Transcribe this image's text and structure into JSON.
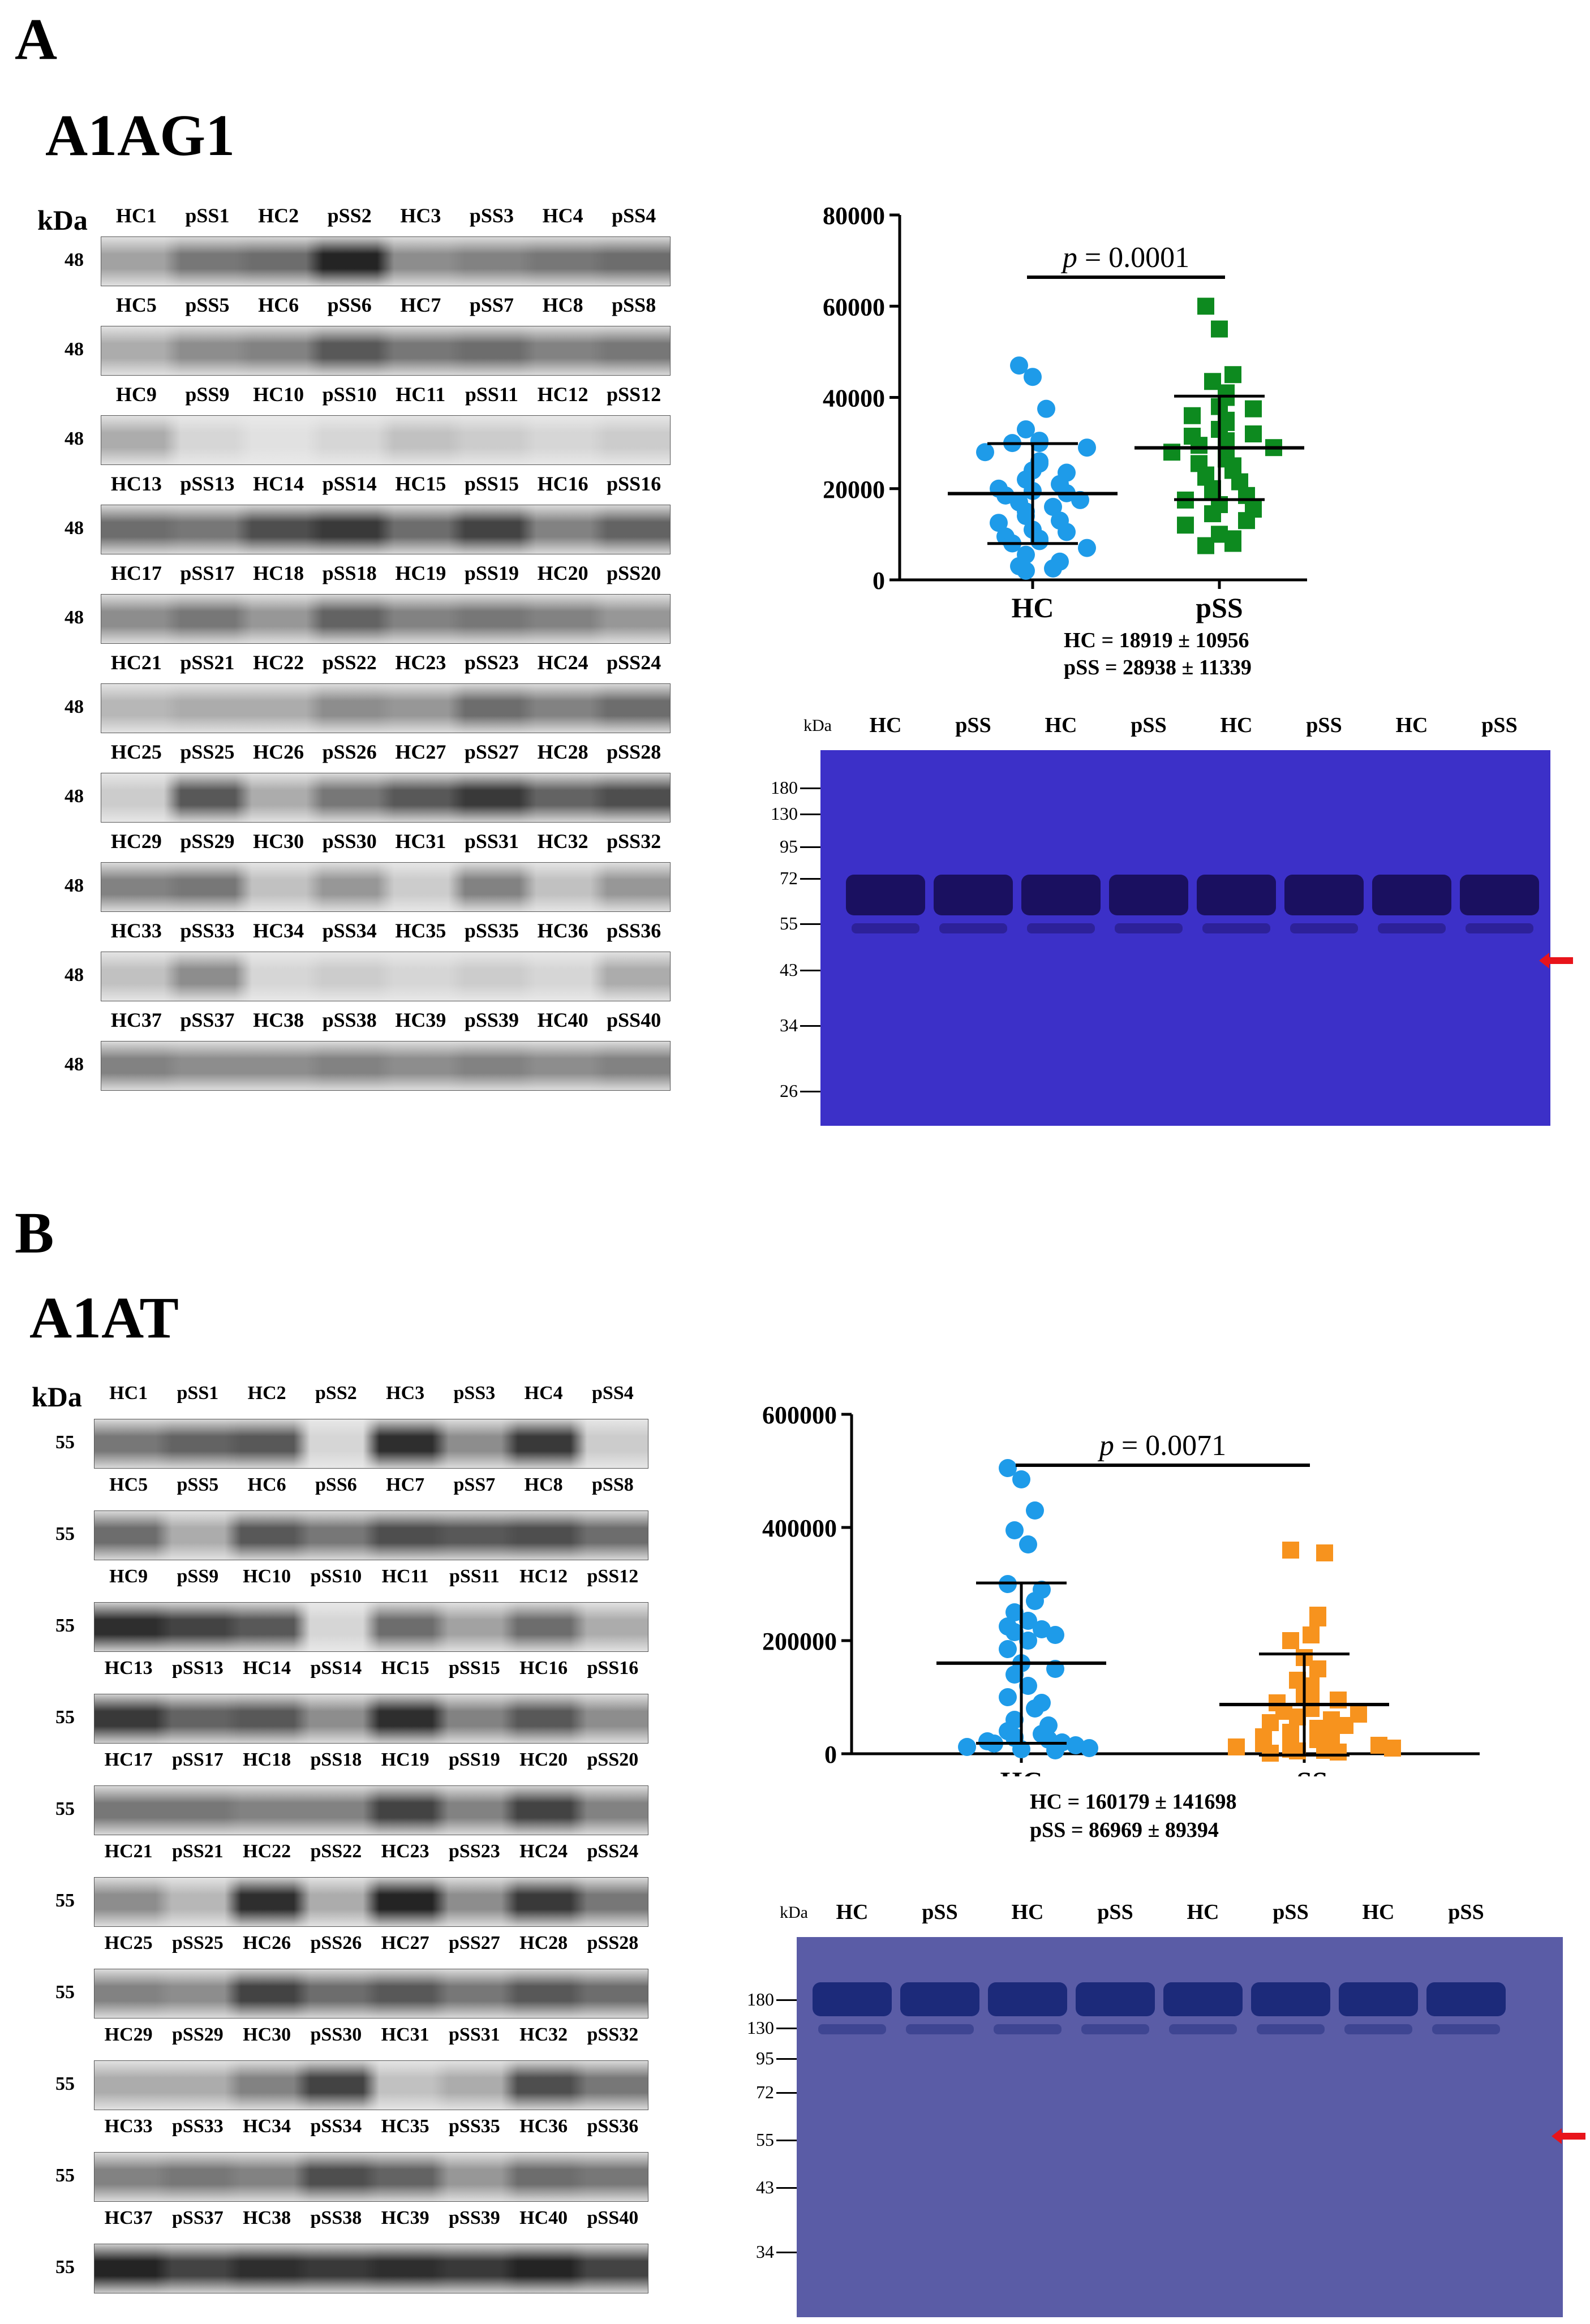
{
  "panelA": {
    "letter": "A",
    "protein": "A1AG1",
    "kda_label": "kDa",
    "mw_marker": "48",
    "blot_rows": [
      [
        "HC1",
        "pSS1",
        "HC2",
        "pSS2",
        "HC3",
        "pSS3",
        "HC4",
        "pSS4"
      ],
      [
        "HC5",
        "pSS5",
        "HC6",
        "pSS6",
        "HC7",
        "pSS7",
        "HC8",
        "pSS8"
      ],
      [
        "HC9",
        "pSS9",
        "HC10",
        "pSS10",
        "HC11",
        "pSS11",
        "HC12",
        "pSS12"
      ],
      [
        "HC13",
        "pSS13",
        "HC14",
        "pSS14",
        "HC15",
        "pSS15",
        "HC16",
        "pSS16"
      ],
      [
        "HC17",
        "pSS17",
        "HC18",
        "pSS18",
        "HC19",
        "pSS19",
        "HC20",
        "pSS20"
      ],
      [
        "HC21",
        "pSS21",
        "HC22",
        "pSS22",
        "HC23",
        "pSS23",
        "HC24",
        "pSS24"
      ],
      [
        "HC25",
        "pSS25",
        "HC26",
        "pSS26",
        "HC27",
        "pSS27",
        "HC28",
        "pSS28"
      ],
      [
        "HC29",
        "pSS29",
        "HC30",
        "pSS30",
        "HC31",
        "pSS31",
        "HC32",
        "pSS32"
      ],
      [
        "HC33",
        "pSS33",
        "HC34",
        "pSS34",
        "HC35",
        "pSS35",
        "HC36",
        "pSS36"
      ],
      [
        "HC37",
        "pSS37",
        "HC38",
        "pSS38",
        "HC39",
        "pSS39",
        "HC40",
        "pSS40"
      ]
    ],
    "band_intensity": [
      [
        0.35,
        0.55,
        0.6,
        0.95,
        0.45,
        0.5,
        0.55,
        0.6
      ],
      [
        0.3,
        0.45,
        0.5,
        0.7,
        0.55,
        0.6,
        0.5,
        0.55
      ],
      [
        0.3,
        0.1,
        0.05,
        0.1,
        0.2,
        0.15,
        0.1,
        0.15
      ],
      [
        0.6,
        0.55,
        0.75,
        0.85,
        0.6,
        0.8,
        0.5,
        0.65
      ],
      [
        0.45,
        0.55,
        0.4,
        0.65,
        0.5,
        0.55,
        0.5,
        0.4
      ],
      [
        0.25,
        0.3,
        0.3,
        0.45,
        0.4,
        0.6,
        0.5,
        0.6
      ],
      [
        0.15,
        0.7,
        0.3,
        0.55,
        0.7,
        0.85,
        0.65,
        0.75
      ],
      [
        0.5,
        0.55,
        0.2,
        0.4,
        0.15,
        0.5,
        0.2,
        0.4
      ],
      [
        0.2,
        0.45,
        0.1,
        0.15,
        0.1,
        0.15,
        0.1,
        0.3
      ],
      [
        0.5,
        0.45,
        0.45,
        0.5,
        0.45,
        0.5,
        0.45,
        0.5
      ]
    ],
    "scatter_gel": {
      "kda_label": "kDa",
      "lanes": [
        "HC",
        "pSS",
        "HC",
        "pSS",
        "HC",
        "pSS",
        "HC",
        "pSS"
      ],
      "markers": [
        "180",
        "130",
        "95",
        "72",
        "55",
        "43",
        "34",
        "26"
      ]
    },
    "stats": {
      "line1": "HC = 18919 ± 10956",
      "line2": "pSS = 28938 ± 11339"
    }
  },
  "panelB": {
    "letter": "B",
    "protein": "A1AT",
    "kda_label": "kDa",
    "mw_marker": "55",
    "blot_rows": [
      [
        "HC1",
        "pSS1",
        "HC2",
        "pSS2",
        "HC3",
        "pSS3",
        "HC4",
        "pSS4"
      ],
      [
        "HC5",
        "pSS5",
        "HC6",
        "pSS6",
        "HC7",
        "pSS7",
        "HC8",
        "pSS8"
      ],
      [
        "HC9",
        "pSS9",
        "HC10",
        "pSS10",
        "HC11",
        "pSS11",
        "HC12",
        "pSS12"
      ],
      [
        "HC13",
        "pSS13",
        "HC14",
        "pSS14",
        "HC15",
        "pSS15",
        "HC16",
        "pSS16"
      ],
      [
        "HC17",
        "pSS17",
        "HC18",
        "pSS18",
        "HC19",
        "pSS19",
        "HC20",
        "pSS20"
      ],
      [
        "HC21",
        "pSS21",
        "HC22",
        "pSS22",
        "HC23",
        "pSS23",
        "HC24",
        "pSS24"
      ],
      [
        "HC25",
        "pSS25",
        "HC26",
        "pSS26",
        "HC27",
        "pSS27",
        "HC28",
        "pSS28"
      ],
      [
        "HC29",
        "pSS29",
        "HC30",
        "pSS30",
        "HC31",
        "pSS31",
        "HC32",
        "pSS32"
      ],
      [
        "HC33",
        "pSS33",
        "HC34",
        "pSS34",
        "HC35",
        "pSS35",
        "HC36",
        "pSS36"
      ],
      [
        "HC37",
        "pSS37",
        "HC38",
        "pSS38",
        "HC39",
        "pSS39",
        "HC40",
        "pSS40"
      ]
    ],
    "band_intensity": [
      [
        0.55,
        0.65,
        0.7,
        0.1,
        0.9,
        0.45,
        0.85,
        0.15
      ],
      [
        0.6,
        0.3,
        0.7,
        0.55,
        0.75,
        0.7,
        0.75,
        0.6
      ],
      [
        0.9,
        0.8,
        0.7,
        0.1,
        0.6,
        0.35,
        0.6,
        0.3
      ],
      [
        0.85,
        0.65,
        0.7,
        0.45,
        0.9,
        0.5,
        0.7,
        0.45
      ],
      [
        0.55,
        0.55,
        0.5,
        0.5,
        0.8,
        0.5,
        0.8,
        0.5
      ],
      [
        0.45,
        0.25,
        0.9,
        0.3,
        0.95,
        0.45,
        0.85,
        0.55
      ],
      [
        0.5,
        0.45,
        0.8,
        0.6,
        0.7,
        0.55,
        0.7,
        0.6
      ],
      [
        0.3,
        0.3,
        0.5,
        0.8,
        0.2,
        0.3,
        0.75,
        0.55
      ],
      [
        0.5,
        0.55,
        0.5,
        0.75,
        0.65,
        0.4,
        0.6,
        0.55
      ],
      [
        0.95,
        0.8,
        0.9,
        0.85,
        0.9,
        0.85,
        0.95,
        0.8
      ]
    ],
    "scatter_gel": {
      "kda_label": "kDa",
      "lanes": [
        "HC",
        "pSS",
        "HC",
        "pSS",
        "HC",
        "pSS",
        "HC",
        "pSS"
      ],
      "markers": [
        "180",
        "130",
        "95",
        "72",
        "55",
        "43",
        "34"
      ]
    },
    "stats": {
      "line1": "HC = 160179 ± 141698",
      "line2": "pSS = 86969 ± 89394"
    }
  },
  "chart_data": [
    {
      "type": "scatter",
      "title": "",
      "categories": [
        "HC",
        "pSS"
      ],
      "ylim": [
        0,
        80000
      ],
      "yticks": [
        "0",
        "20000",
        "40000",
        "60000",
        "80000"
      ],
      "p_value_label": "p",
      "p_value": "= 0.0001",
      "colors": {
        "HC": "#1e9be9",
        "pSS": "#0d8a1f"
      },
      "series": [
        {
          "name": "HC",
          "mean": 18919,
          "sd": 10956,
          "values": [
            47000,
            44500,
            37500,
            33000,
            30500,
            30000,
            30000,
            29000,
            28000,
            26000,
            25500,
            24000,
            23500,
            22000,
            21000,
            20000,
            19500,
            19000,
            18500,
            17500,
            17000,
            16000,
            15000,
            14000,
            13000,
            12500,
            11000,
            10500,
            9500,
            9000,
            8500,
            8000,
            7000,
            5500,
            4000,
            3000,
            2500,
            2000
          ]
        },
        {
          "name": "pSS",
          "mean": 28938,
          "sd": 11339,
          "values": [
            60000,
            55000,
            45000,
            43500,
            41000,
            40000,
            38000,
            37500,
            36000,
            35000,
            34500,
            33000,
            32000,
            31500,
            30500,
            30000,
            29500,
            29000,
            28000,
            27000,
            26500,
            25500,
            25000,
            24000,
            23000,
            22500,
            21500,
            20000,
            19500,
            18500,
            17500,
            16500,
            15500,
            14500,
            13000,
            12000,
            10000,
            9000,
            8000,
            7500
          ]
        }
      ]
    },
    {
      "type": "scatter",
      "title": "",
      "categories": [
        "HC",
        "pSS"
      ],
      "ylim": [
        0,
        600000
      ],
      "yticks": [
        "0",
        "200000",
        "400000",
        "600000"
      ],
      "p_value_label": "p",
      "p_value": "= 0.0071",
      "colors": {
        "HC": "#1e9be9",
        "pSS": "#f7931e"
      },
      "series": [
        {
          "name": "HC",
          "mean": 160179,
          "sd": 141698,
          "values": [
            505000,
            485000,
            430000,
            395000,
            370000,
            300000,
            290000,
            270000,
            250000,
            235000,
            225000,
            220000,
            215000,
            210000,
            200000,
            185000,
            160000,
            150000,
            140000,
            120000,
            100000,
            90000,
            80000,
            60000,
            50000,
            40000,
            35000,
            30000,
            28000,
            25000,
            22000,
            20000,
            18000,
            15000,
            12000,
            10000,
            8000,
            6000
          ]
        },
        {
          "name": "pSS",
          "mean": 86969,
          "sd": 89394,
          "values": [
            360000,
            355000,
            245000,
            240000,
            210000,
            200000,
            170000,
            150000,
            130000,
            120000,
            110000,
            100000,
            95000,
            90000,
            85000,
            80000,
            75000,
            70000,
            65000,
            60000,
            55000,
            50000,
            45000,
            42000,
            38000,
            35000,
            30000,
            28000,
            25000,
            22000,
            20000,
            18000,
            15000,
            12000,
            10000,
            8000,
            6000,
            5000,
            3000,
            1000
          ]
        }
      ]
    }
  ]
}
